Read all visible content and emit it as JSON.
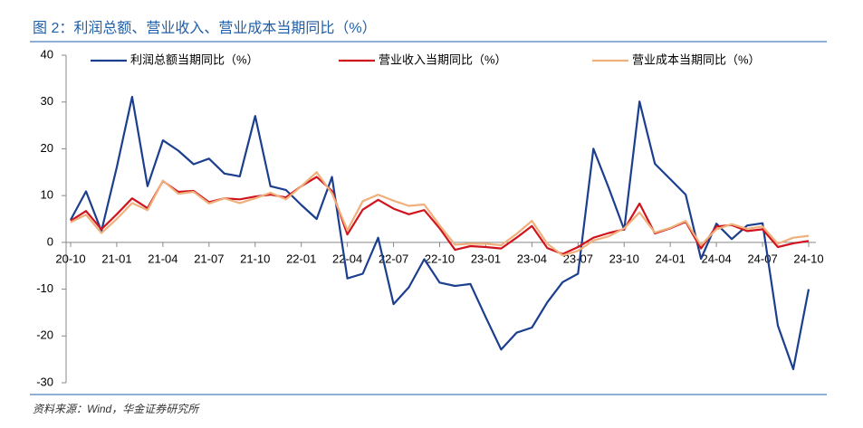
{
  "chart_data": {
    "type": "line",
    "title": "图 2：利润总额、营业收入、营业成本当期同比（%）",
    "source": "资料来源：Wind，华金证券研究所",
    "categories": [
      "20-10",
      null,
      null,
      "21-01",
      null,
      null,
      "21-04",
      null,
      null,
      "21-07",
      null,
      null,
      "21-10",
      null,
      null,
      "22-01",
      null,
      null,
      "22-04",
      null,
      null,
      "22-07",
      null,
      null,
      "22-10",
      null,
      null,
      "23-01",
      null,
      null,
      "23-04",
      null,
      null,
      "23-07",
      null,
      null,
      "23-10",
      null,
      null,
      "24-01",
      null,
      null,
      "24-04",
      null,
      null,
      "24-07",
      null,
      null,
      "24-10"
    ],
    "series": [
      {
        "name": "利润总额当期同比（%）",
        "color": "#1b3f8e",
        "values": [
          4.8,
          10.9,
          2.4,
          16,
          31.1,
          12.0,
          21.8,
          19.6,
          16.7,
          17.9,
          14.7,
          14.1,
          27,
          12.0,
          11.2,
          8,
          5.0,
          14.0,
          -7.7,
          -6.7,
          1.0,
          -13.2,
          -9.6,
          -3.6,
          -8.6,
          -9.3,
          -8.9,
          -16,
          -22.9,
          -19.3,
          -18.2,
          -12.8,
          -8.5,
          -6.7,
          20.0,
          11.6,
          2.7,
          30.1,
          16.8,
          13.5,
          10.2,
          -3.5,
          4.0,
          0.7,
          3.6,
          4.1,
          -17.8,
          -27.1,
          -10.0
        ]
      },
      {
        "name": "营业收入当期同比（%）",
        "color": "#d0141e",
        "values": [
          4.6,
          6.7,
          2.8,
          6,
          9.4,
          7.3,
          13.1,
          10.8,
          11.0,
          8.6,
          9.4,
          9.2,
          9.8,
          10.2,
          9.6,
          12,
          14.0,
          11.0,
          1.7,
          7.0,
          9.1,
          7.2,
          6.0,
          6.9,
          3.0,
          -1.6,
          -0.8,
          -1.0,
          -1.3,
          1.0,
          3.5,
          -1.2,
          -2.5,
          -1.0,
          1.0,
          2.0,
          2.8,
          8.3,
          1.9,
          3.0,
          4.4,
          -1.3,
          3.4,
          3.7,
          2.4,
          2.8,
          -1.0,
          -0.2,
          0.3
        ]
      },
      {
        "name": "营业成本当期同比（%）",
        "color": "#f0b07c",
        "values": [
          4.3,
          5.9,
          2.0,
          5,
          8.4,
          6.9,
          13.2,
          10.4,
          10.8,
          8.3,
          9.4,
          8.4,
          9.4,
          10.6,
          9.2,
          12,
          15.0,
          10.5,
          2.6,
          8.8,
          10.2,
          8.9,
          7.8,
          8.1,
          3.6,
          -0.5,
          -0.3,
          -0.3,
          -0.6,
          1.8,
          4.6,
          -0.3,
          -2.8,
          -1.8,
          0.4,
          1.3,
          3.0,
          6.4,
          2.1,
          3.1,
          4.6,
          -0.6,
          2.8,
          3.9,
          2.9,
          3.4,
          -0.3,
          1.0,
          1.4
        ]
      }
    ],
    "ylim": [
      -30,
      40
    ],
    "yticks": [
      -30,
      -20,
      -10,
      0,
      10,
      20,
      30,
      40
    ]
  }
}
